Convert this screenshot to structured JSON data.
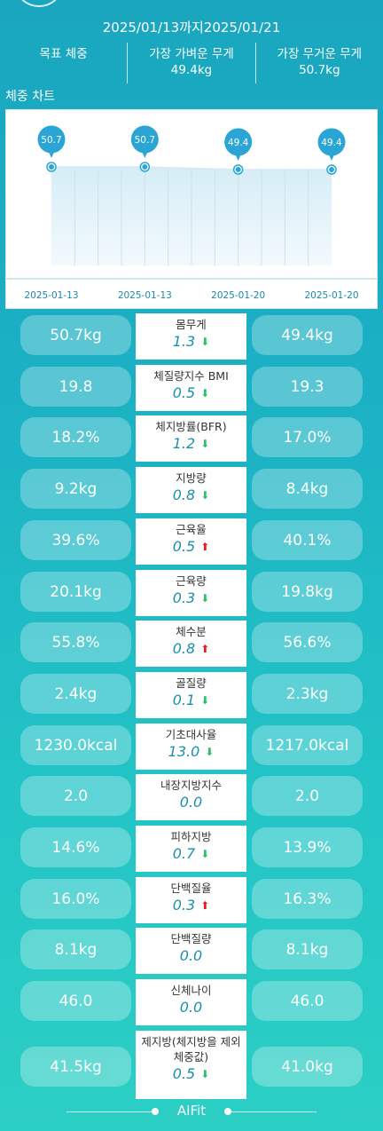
{
  "header": {
    "date_range": "2025/01/13까지2025/01/21",
    "summary": [
      {
        "label": "목표 체중",
        "value": ""
      },
      {
        "label": "가장 가벼운 무게",
        "value": "49.4kg"
      },
      {
        "label": "가장 무거운 무게",
        "value": "50.7kg"
      }
    ]
  },
  "chart_section_title": "체중 차트",
  "chart_data": {
    "type": "area",
    "x": [
      "2025-01-13",
      "2025-01-13",
      "2025-01-20",
      "2025-01-20"
    ],
    "values": [
      50.7,
      50.7,
      49.4,
      49.4
    ],
    "point_labels": [
      "50.7",
      "50.7",
      "49.4",
      "49.4"
    ],
    "colors": {
      "line": "#d5e9f3",
      "fill_top": "#d6edf6",
      "fill_bottom": "#f2f9fc",
      "marker": "#2aa5d6"
    }
  },
  "metrics": [
    {
      "name": "몸무게",
      "left": "50.7kg",
      "diff": "1.3",
      "dir": "down",
      "right": "49.4kg"
    },
    {
      "name": "체질량지수 BMI",
      "left": "19.8",
      "diff": "0.5",
      "dir": "down",
      "right": "19.3"
    },
    {
      "name": "체지방률(BFR)",
      "left": "18.2%",
      "diff": "1.2",
      "dir": "down",
      "right": "17.0%"
    },
    {
      "name": "지방량",
      "left": "9.2kg",
      "diff": "0.8",
      "dir": "down",
      "right": "8.4kg"
    },
    {
      "name": "근육율",
      "left": "39.6%",
      "diff": "0.5",
      "dir": "up",
      "right": "40.1%"
    },
    {
      "name": "근육량",
      "left": "20.1kg",
      "diff": "0.3",
      "dir": "down",
      "right": "19.8kg"
    },
    {
      "name": "체수분",
      "left": "55.8%",
      "diff": "0.8",
      "dir": "up",
      "right": "56.6%"
    },
    {
      "name": "골질량",
      "left": "2.4kg",
      "diff": "0.1",
      "dir": "down",
      "right": "2.3kg"
    },
    {
      "name": "기초대사율",
      "left": "1230.0kcal",
      "diff": "13.0",
      "dir": "down",
      "right": "1217.0kcal"
    },
    {
      "name": "내장지방지수",
      "left": "2.0",
      "diff": "0.0",
      "dir": "none",
      "right": "2.0"
    },
    {
      "name": "피하지방",
      "left": "14.6%",
      "diff": "0.7",
      "dir": "down",
      "right": "13.9%"
    },
    {
      "name": "단백질율",
      "left": "16.0%",
      "diff": "0.3",
      "dir": "up",
      "right": "16.3%"
    },
    {
      "name": "단백질량",
      "left": "8.1kg",
      "diff": "0.0",
      "dir": "none",
      "right": "8.1kg"
    },
    {
      "name": "신체나이",
      "left": "46.0",
      "diff": "0.0",
      "dir": "none",
      "right": "46.0"
    },
    {
      "name": "제지방(체지방을 제외\n체중값)",
      "left": "41.5kg",
      "diff": "0.5",
      "dir": "down",
      "right": "41.0kg"
    }
  ],
  "footer": {
    "brand": "AIFit"
  }
}
